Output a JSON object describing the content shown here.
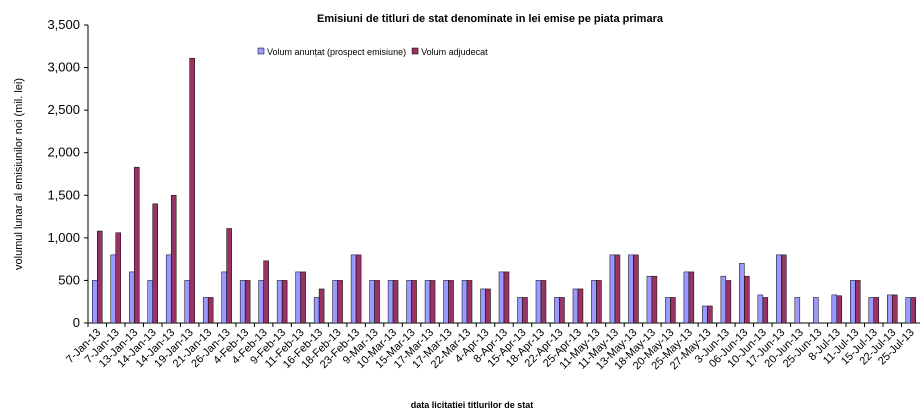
{
  "chart_data": {
    "type": "bar",
    "title": "Emisiuni de titluri de stat denominate in lei emise pe piata primara",
    "y_label": "volumul lunar al emisiunilor noi (mil. lei)",
    "x_label": "data  licitatiei  titlurilor de stat",
    "categories": [
      "7-Jan-13",
      "7-Jan-13",
      "13-Jan-13",
      "14-Jan-13",
      "14-Jan-13",
      "19-Jan-13",
      "21-Jan-13",
      "26-Jan-13",
      "4-Feb-13",
      "4-Feb-13",
      "9-Feb-13",
      "11-Feb-13",
      "16-Feb-13",
      "18-Feb-13",
      "23-Feb-13",
      "9-Mar-13",
      "10-Mar-13",
      "15-Mar-13",
      "17-Mar-13",
      "17-Mar-13",
      "22-Mar-13",
      "4-Apr-13",
      "8-Apr-13",
      "15-Apr-13",
      "18-Apr-13",
      "22-Apr-13",
      "25-Apr-13",
      "11-May-13",
      "11-May-13",
      "13-May-13",
      "18-May-13",
      "20-May-13",
      "25-May-13",
      "27-May-13",
      "3-Jun-13",
      "06-Jun-13",
      "10-Jun-13",
      "17-Jun-13",
      "20-Jun-13",
      "25-Jun-13",
      "8-Jul-13",
      "11-Jul-13",
      "15-Jul-13",
      "22-Jul-13",
      "25-Jul-13"
    ],
    "series": [
      {
        "name": "Volum anunțat (prospect emisiune)",
        "color": "#9999ff",
        "values": [
          500,
          800,
          600,
          500,
          800,
          500,
          300,
          600,
          500,
          500,
          500,
          600,
          300,
          500,
          800,
          500,
          500,
          500,
          500,
          500,
          500,
          400,
          600,
          300,
          500,
          300,
          400,
          500,
          800,
          800,
          550,
          300,
          600,
          200,
          550,
          700,
          330,
          800,
          300,
          300,
          330,
          500,
          300,
          330,
          300
        ]
      },
      {
        "name": "Volum adjudecat",
        "color": "#993366",
        "values": [
          1080,
          1060,
          1830,
          1400,
          1500,
          3110,
          300,
          1110,
          500,
          730,
          500,
          600,
          400,
          500,
          800,
          500,
          500,
          500,
          500,
          500,
          500,
          400,
          600,
          300,
          500,
          300,
          400,
          500,
          800,
          800,
          550,
          300,
          600,
          200,
          500,
          550,
          300,
          800,
          null,
          null,
          320,
          500,
          300,
          330,
          300
        ]
      }
    ],
    "ylim": [
      0,
      3500
    ],
    "yticks": [
      0,
      {
        "value": 500,
        "label": "500"
      },
      {
        "value": 1000,
        "label": "1,000"
      },
      {
        "value": 1500,
        "label": "1,500"
      },
      {
        "value": 2000,
        "label": "2,000"
      },
      {
        "value": 2500,
        "label": "2,500"
      },
      {
        "value": 3000,
        "label": "3,000"
      },
      {
        "value": 3500,
        "label": "3,500"
      }
    ]
  }
}
